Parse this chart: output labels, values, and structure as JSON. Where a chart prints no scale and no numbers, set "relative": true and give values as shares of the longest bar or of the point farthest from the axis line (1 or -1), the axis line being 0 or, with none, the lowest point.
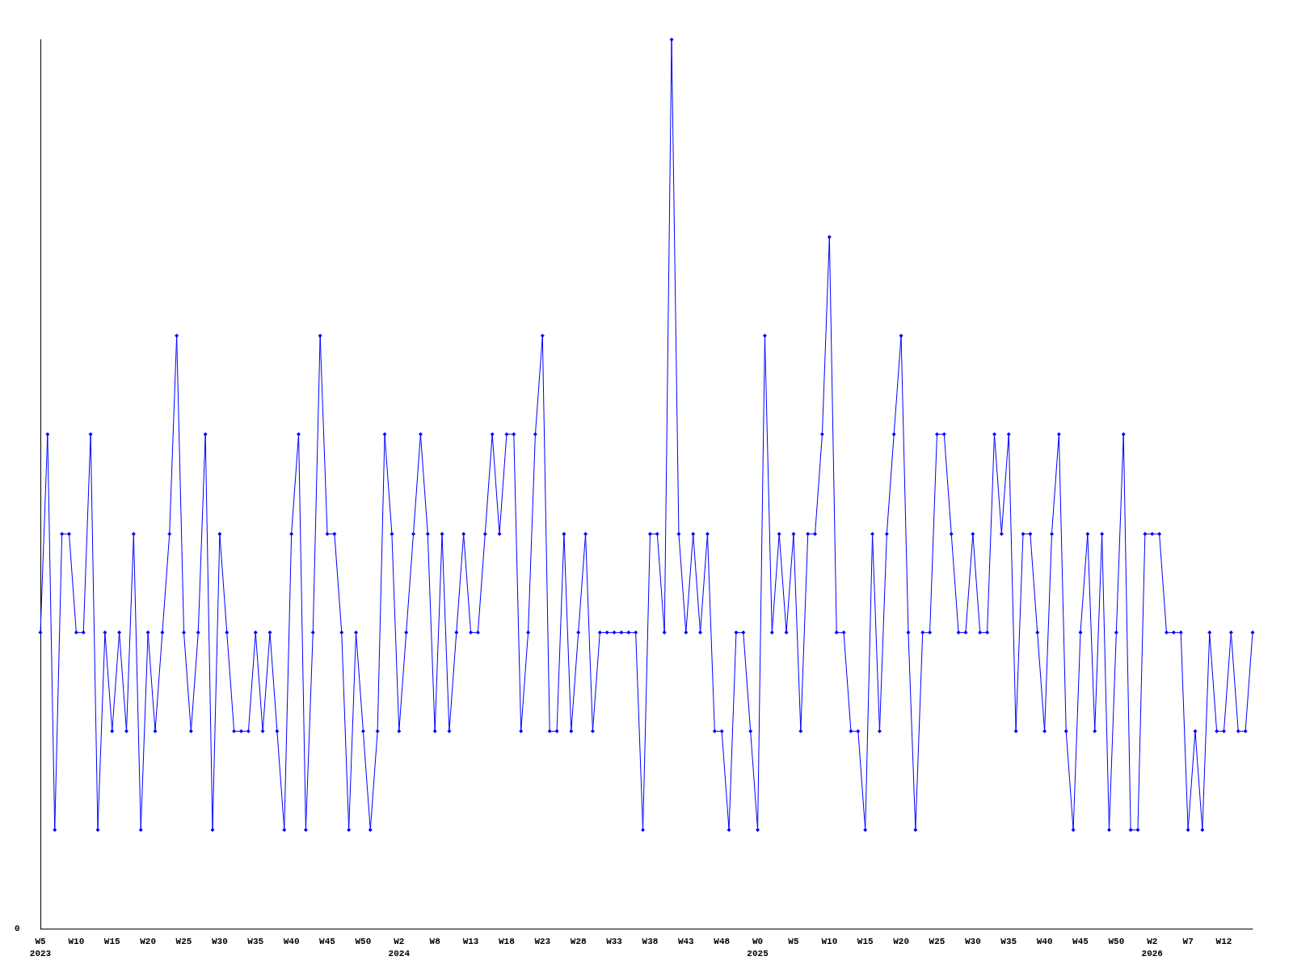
{
  "chart_data": {
    "type": "line",
    "relative": true,
    "marker": "diamond",
    "line_style": "solid",
    "annotations": [
      "0"
    ],
    "categories": [
      "W5\n2023",
      null,
      null,
      null,
      null,
      "W10",
      null,
      null,
      null,
      null,
      "W15",
      null,
      null,
      null,
      null,
      "W20",
      null,
      null,
      null,
      null,
      "W25",
      null,
      null,
      null,
      null,
      "W30",
      null,
      null,
      null,
      null,
      "W35",
      null,
      null,
      null,
      null,
      "W40",
      null,
      null,
      null,
      null,
      "W45",
      null,
      null,
      null,
      null,
      "W50",
      null,
      null,
      null,
      null,
      "W2\n2024",
      null,
      null,
      null,
      null,
      "W8",
      null,
      null,
      null,
      null,
      "W13",
      null,
      null,
      null,
      null,
      "W18",
      null,
      null,
      null,
      null,
      "W23",
      null,
      null,
      null,
      null,
      "W28",
      null,
      null,
      null,
      null,
      "W33",
      null,
      null,
      null,
      null,
      "W38",
      null,
      null,
      null,
      null,
      "W43",
      null,
      null,
      null,
      null,
      "W48",
      null,
      null,
      null,
      null,
      "W0\n2025",
      null,
      null,
      null,
      null,
      "W5",
      null,
      null,
      null,
      null,
      "W10",
      null,
      null,
      null,
      null,
      "W15",
      null,
      null,
      null,
      null,
      "W20",
      null,
      null,
      null,
      null,
      "W25",
      null,
      null,
      null,
      null,
      "W30",
      null,
      null,
      null,
      null,
      "W35",
      null,
      null,
      null,
      null,
      "W40",
      null,
      null,
      null,
      null,
      "W45",
      null,
      null,
      null,
      null,
      "W50",
      null,
      null,
      null,
      null,
      "W2\n2026",
      null,
      null,
      null,
      null,
      "W7",
      null,
      null,
      null,
      null,
      "W12",
      null,
      null,
      null,
      null
    ],
    "series": [
      {
        "color": "#0000ff",
        "values": [
          0.333,
          0.556,
          0.111,
          0.444,
          0.444,
          0.333,
          0.333,
          0.556,
          0.111,
          0.333,
          0.222,
          0.333,
          0.222,
          0.444,
          0.111,
          0.333,
          0.222,
          0.333,
          0.444,
          0.667,
          0.333,
          0.222,
          0.333,
          0.556,
          0.111,
          0.444,
          0.333,
          0.222,
          0.222,
          0.222,
          0.333,
          0.222,
          0.333,
          0.222,
          0.111,
          0.444,
          0.556,
          0.111,
          0.333,
          0.667,
          0.444,
          0.444,
          0.333,
          0.111,
          0.333,
          0.222,
          0.111,
          0.222,
          0.556,
          0.444,
          0.222,
          0.333,
          0.444,
          0.556,
          0.444,
          0.222,
          0.444,
          0.222,
          0.333,
          0.444,
          0.333,
          0.333,
          0.444,
          0.556,
          0.444,
          0.556,
          0.556,
          0.222,
          0.333,
          0.556,
          0.667,
          0.222,
          0.222,
          0.444,
          0.222,
          0.333,
          0.444,
          0.222,
          0.333,
          0.333,
          0.333,
          0.333,
          0.333,
          0.333,
          0.111,
          0.444,
          0.444,
          0.333,
          1,
          0.444,
          0.333,
          0.444,
          0.333,
          0.444,
          0.222,
          0.222,
          0.111,
          0.333,
          0.333,
          0.222,
          0.111,
          0.667,
          0.333,
          0.444,
          0.333,
          0.444,
          0.222,
          0.444,
          0.444,
          0.556,
          0.778,
          0.333,
          0.333,
          0.222,
          0.222,
          0.111,
          0.444,
          0.222,
          0.444,
          0.556,
          0.667,
          0.333,
          0.111,
          0.333,
          0.333,
          0.556,
          0.556,
          0.444,
          0.333,
          0.333,
          0.444,
          0.333,
          0.333,
          0.556,
          0.444,
          0.556,
          0.222,
          0.444,
          0.444,
          0.333,
          0.222,
          0.444,
          0.556,
          0.222,
          0.111,
          0.333,
          0.444,
          0.222,
          0.444,
          0.111,
          0.333,
          0.556,
          0.111,
          0.111,
          0.444,
          0.444,
          0.444,
          0.333,
          0.333,
          0.333,
          0.111,
          0.222,
          0.111,
          0.333,
          0.222,
          0.222,
          0.333,
          0.222,
          0.222,
          0.333
        ]
      }
    ]
  }
}
